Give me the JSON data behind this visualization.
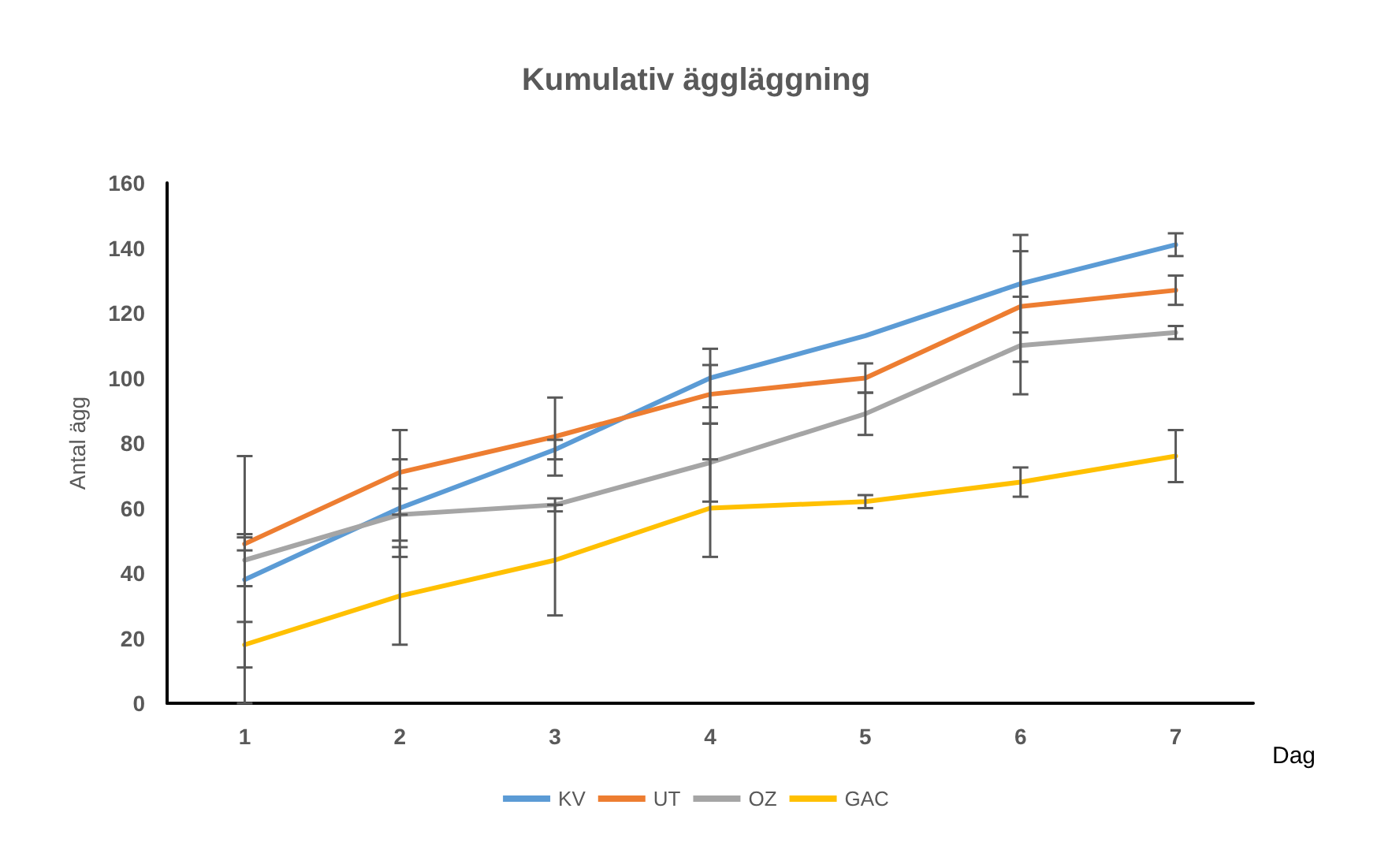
{
  "chart_data": {
    "type": "line",
    "title": "Kumulativ äggläggning",
    "xlabel": "Dag",
    "ylabel": "Antal ägg",
    "categories": [
      "1",
      "2",
      "3",
      "4",
      "5",
      "6",
      "7"
    ],
    "series": [
      {
        "name": "KV",
        "color": "#5b9bd5",
        "values": [
          38,
          60,
          78,
          100,
          113,
          129,
          141
        ],
        "errors": [
          38,
          15,
          3,
          9,
          null,
          15,
          3.5
        ]
      },
      {
        "name": "UT",
        "color": "#ed7d31",
        "values": [
          49,
          71,
          82,
          95,
          100,
          122,
          127
        ],
        "errors": [
          2,
          13,
          12,
          9,
          4.5,
          17,
          4.5
        ]
      },
      {
        "name": "OZ",
        "color": "#a5a5a5",
        "values": [
          44,
          58,
          61,
          74,
          89,
          110,
          114
        ],
        "errors": [
          8,
          8,
          2,
          12,
          6.5,
          15,
          2
        ]
      },
      {
        "name": "GAC",
        "color": "#ffc000",
        "values": [
          18,
          33,
          44,
          60,
          62,
          68,
          76
        ],
        "errors": [
          7,
          15,
          17,
          15,
          2,
          4.5,
          8
        ]
      }
    ],
    "ylim": [
      0,
      160
    ],
    "yticks": [
      0,
      20,
      40,
      60,
      80,
      100,
      120,
      140,
      160
    ],
    "grid": false,
    "legend": "bottom",
    "marker": "none",
    "line_style": "solid"
  }
}
